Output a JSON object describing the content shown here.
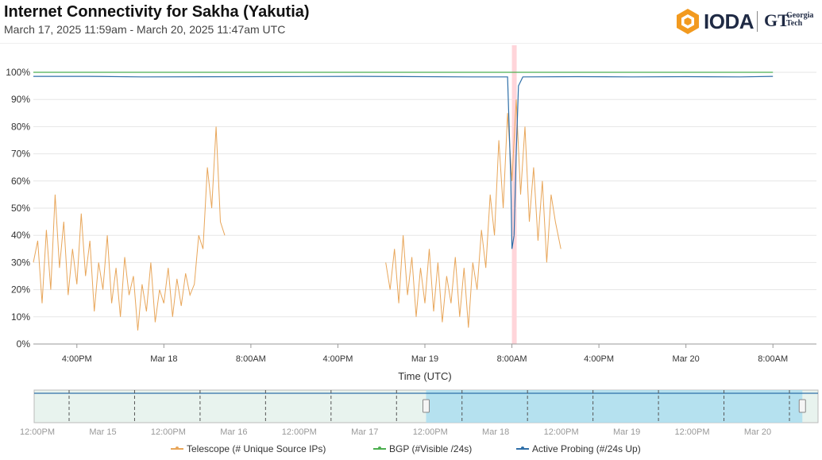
{
  "title": "Internet Connectivity for Sakha (Yakutia)",
  "subtitle": "March 17, 2025 11:59am - March 20, 2025 11:47am UTC",
  "logo": {
    "ioda": "IODA",
    "gt": "GT",
    "gt_sub1": "Georgia",
    "gt_sub2": "Tech"
  },
  "colors": {
    "telescope": "#e8a65a",
    "bgp": "#4caf50",
    "active_probing": "#2f6fa8",
    "outage_band": "#ffd5da",
    "navigator_window": "#a8dcef"
  },
  "chart_data": {
    "type": "line",
    "xlabel": "Time (UTC)",
    "x_tick_labels": [
      "4:00PM",
      "Mar 18",
      "8:00AM",
      "4:00PM",
      "Mar 19",
      "8:00AM",
      "4:00PM",
      "Mar 20",
      "8:00AM"
    ],
    "y_tick_labels": [
      "0%",
      "10%",
      "20%",
      "30%",
      "40%",
      "50%",
      "60%",
      "70%",
      "80%",
      "90%",
      "100%"
    ],
    "ylim": [
      0,
      100
    ],
    "grid": true,
    "legend_position": "bottom",
    "outage_band": {
      "start_hours": 44.0,
      "end_hours": 44.4
    },
    "series": [
      {
        "name": "Telescope (# Unique Source IPs)",
        "key": "telescope",
        "segments": [
          {
            "start_hours": 0.0,
            "end_hours": 17.6,
            "points": [
              [
                0.0,
                30
              ],
              [
                0.4,
                38
              ],
              [
                0.8,
                15
              ],
              [
                1.2,
                42
              ],
              [
                1.6,
                20
              ],
              [
                2.0,
                55
              ],
              [
                2.4,
                28
              ],
              [
                2.8,
                45
              ],
              [
                3.2,
                18
              ],
              [
                3.6,
                35
              ],
              [
                4.0,
                22
              ],
              [
                4.4,
                48
              ],
              [
                4.8,
                25
              ],
              [
                5.2,
                38
              ],
              [
                5.6,
                12
              ],
              [
                6.0,
                30
              ],
              [
                6.4,
                20
              ],
              [
                6.8,
                40
              ],
              [
                7.2,
                15
              ],
              [
                7.6,
                28
              ],
              [
                8.0,
                10
              ],
              [
                8.4,
                32
              ],
              [
                8.8,
                18
              ],
              [
                9.2,
                25
              ],
              [
                9.6,
                5
              ],
              [
                10.0,
                22
              ],
              [
                10.4,
                12
              ],
              [
                10.8,
                30
              ],
              [
                11.2,
                8
              ],
              [
                11.6,
                20
              ],
              [
                12.0,
                15
              ],
              [
                12.4,
                28
              ],
              [
                12.8,
                10
              ],
              [
                13.2,
                24
              ],
              [
                13.6,
                14
              ],
              [
                14.0,
                26
              ],
              [
                14.4,
                18
              ],
              [
                14.8,
                22
              ],
              [
                15.2,
                40
              ],
              [
                15.6,
                35
              ],
              [
                16.0,
                65
              ],
              [
                16.4,
                50
              ],
              [
                16.8,
                80
              ],
              [
                17.2,
                45
              ],
              [
                17.6,
                40
              ]
            ]
          },
          {
            "start_hours": 32.4,
            "end_hours": 48.5,
            "points": [
              [
                32.4,
                30
              ],
              [
                32.8,
                20
              ],
              [
                33.2,
                35
              ],
              [
                33.6,
                15
              ],
              [
                34.0,
                40
              ],
              [
                34.4,
                18
              ],
              [
                34.8,
                32
              ],
              [
                35.2,
                10
              ],
              [
                35.6,
                28
              ],
              [
                36.0,
                15
              ],
              [
                36.4,
                35
              ],
              [
                36.8,
                12
              ],
              [
                37.2,
                30
              ],
              [
                37.6,
                8
              ],
              [
                38.0,
                25
              ],
              [
                38.4,
                15
              ],
              [
                38.8,
                32
              ],
              [
                39.2,
                10
              ],
              [
                39.6,
                28
              ],
              [
                40.0,
                6
              ],
              [
                40.4,
                30
              ],
              [
                40.8,
                20
              ],
              [
                41.2,
                42
              ],
              [
                41.6,
                28
              ],
              [
                42.0,
                55
              ],
              [
                42.4,
                40
              ],
              [
                42.8,
                75
              ],
              [
                43.2,
                50
              ],
              [
                43.6,
                85
              ],
              [
                44.0,
                60
              ],
              [
                44.4,
                90
              ],
              [
                44.8,
                55
              ],
              [
                45.2,
                80
              ],
              [
                45.6,
                45
              ],
              [
                46.0,
                65
              ],
              [
                46.4,
                38
              ],
              [
                46.8,
                60
              ],
              [
                47.2,
                30
              ],
              [
                47.6,
                55
              ],
              [
                48.0,
                45
              ],
              [
                48.5,
                35
              ]
            ]
          }
        ]
      },
      {
        "name": "BGP (#Visible /24s)",
        "key": "bgp",
        "segments": [
          {
            "start_hours": 0.0,
            "end_hours": 68.0,
            "points": [
              [
                0.0,
                100
              ],
              [
                68.0,
                100
              ]
            ]
          }
        ]
      },
      {
        "name": "Active Probing (#/24s Up)",
        "key": "active_probing",
        "segments": [
          {
            "start_hours": 0.0,
            "end_hours": 68.0,
            "points": [
              [
                0.0,
                98.5
              ],
              [
                5,
                98.5
              ],
              [
                10,
                98.3
              ],
              [
                20,
                98.4
              ],
              [
                30,
                98.5
              ],
              [
                40,
                98.3
              ],
              [
                43.6,
                98.3
              ],
              [
                43.9,
                60
              ],
              [
                44.0,
                35
              ],
              [
                44.2,
                40
              ],
              [
                44.4,
                70
              ],
              [
                44.6,
                95
              ],
              [
                45,
                98.3
              ],
              [
                50,
                98.4
              ],
              [
                55,
                98.3
              ],
              [
                60,
                98.4
              ],
              [
                65,
                98.3
              ],
              [
                68,
                98.5
              ]
            ]
          }
        ]
      }
    ],
    "navigator": {
      "x_tick_labels": [
        "12:00PM",
        "Mar 15",
        "12:00PM",
        "Mar 16",
        "12:00PM",
        "Mar 17",
        "12:00PM",
        "Mar 18",
        "12:00PM",
        "Mar 19",
        "12:00PM",
        "Mar 20"
      ],
      "window": {
        "start_fraction": 0.5,
        "end_fraction": 0.98
      }
    }
  },
  "legend": [
    {
      "label": "Telescope (# Unique Source IPs)",
      "key": "telescope"
    },
    {
      "label": "BGP (#Visible /24s)",
      "key": "bgp"
    },
    {
      "label": "Active Probing (#/24s Up)",
      "key": "active_probing"
    }
  ]
}
